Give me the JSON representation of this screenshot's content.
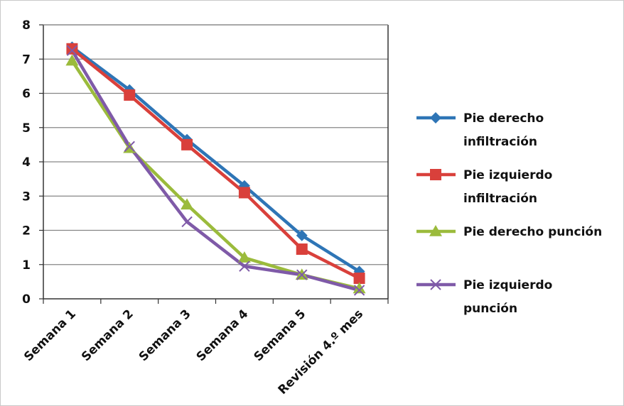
{
  "chart_data": {
    "type": "line",
    "categories": [
      "Semana 1",
      "Semana 2",
      "Semana 3",
      "Semana 4",
      "Semana 5",
      "Revisión 4.º mes"
    ],
    "yticks": [
      "0",
      "1",
      "2",
      "3",
      "4",
      "5",
      "6",
      "7",
      "8"
    ],
    "ylim": [
      0,
      8
    ],
    "grid": true,
    "legend_position": "right",
    "series": [
      {
        "name": "Pie derecho infiltración",
        "legend_lines": [
          "Pie derecho",
          "infiltración"
        ],
        "color": "#2e75b6",
        "marker": "diamond",
        "values": [
          7.35,
          6.1,
          4.65,
          3.3,
          1.85,
          0.8
        ]
      },
      {
        "name": "Pie izquierdo infiltración",
        "legend_lines": [
          "Pie izquierdo",
          "infiltración"
        ],
        "color": "#d9403b",
        "marker": "square",
        "values": [
          7.3,
          5.95,
          4.5,
          3.1,
          1.45,
          0.6
        ]
      },
      {
        "name": "Pie derecho punción",
        "legend_lines": [
          "Pie derecho punción"
        ],
        "color": "#9bbb3c",
        "marker": "triangle",
        "values": [
          6.95,
          4.4,
          2.75,
          1.2,
          0.7,
          0.3
        ]
      },
      {
        "name": "Pie izquierdo punción",
        "legend_lines": [
          "Pie izquierdo",
          "punción"
        ],
        "color": "#7f5aa8",
        "marker": "cross",
        "values": [
          7.25,
          4.45,
          2.25,
          0.95,
          0.7,
          0.25
        ]
      }
    ]
  }
}
